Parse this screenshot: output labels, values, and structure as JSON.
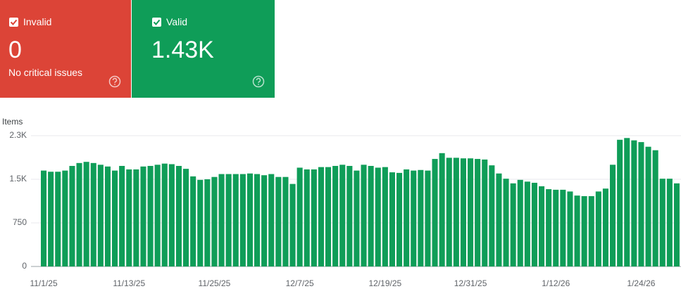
{
  "cards": [
    {
      "label": "Invalid",
      "value": "0",
      "subtitle": "No critical issues",
      "color": "#dc4437"
    },
    {
      "label": "Valid",
      "value": "1.43K",
      "color": "#0f9d58"
    }
  ],
  "chart_data": {
    "type": "bar",
    "y_label": "Items",
    "color": "#0f9d58",
    "grid": true,
    "categories": [
      "11/1/25",
      null,
      null,
      null,
      null,
      null,
      null,
      null,
      null,
      null,
      null,
      null,
      "11/13/25",
      null,
      null,
      null,
      null,
      null,
      null,
      null,
      null,
      null,
      null,
      null,
      "11/25/25",
      null,
      null,
      null,
      null,
      null,
      null,
      null,
      null,
      null,
      null,
      null,
      "12/7/25",
      null,
      null,
      null,
      null,
      null,
      null,
      null,
      null,
      null,
      null,
      null,
      "12/19/25",
      null,
      null,
      null,
      null,
      null,
      null,
      null,
      null,
      null,
      null,
      null,
      "12/31/25",
      null,
      null,
      null,
      null,
      null,
      null,
      null,
      null,
      null,
      null,
      null,
      "1/12/26",
      null,
      null,
      null,
      null,
      null,
      null,
      null,
      null,
      null,
      null,
      null,
      "1/24/26",
      null,
      null,
      null,
      null,
      null
    ],
    "values": [
      1650,
      1630,
      1630,
      1650,
      1730,
      1780,
      1800,
      1780,
      1750,
      1720,
      1650,
      1730,
      1670,
      1670,
      1720,
      1730,
      1750,
      1770,
      1760,
      1730,
      1680,
      1550,
      1490,
      1500,
      1540,
      1590,
      1590,
      1590,
      1590,
      1600,
      1590,
      1570,
      1590,
      1540,
      1540,
      1420,
      1700,
      1670,
      1670,
      1710,
      1710,
      1730,
      1750,
      1730,
      1650,
      1750,
      1730,
      1700,
      1710,
      1620,
      1610,
      1670,
      1650,
      1660,
      1650,
      1850,
      1950,
      1870,
      1870,
      1860,
      1860,
      1850,
      1840,
      1740,
      1600,
      1510,
      1430,
      1490,
      1460,
      1440,
      1380,
      1330,
      1320,
      1320,
      1290,
      1220,
      1210,
      1210,
      1290,
      1340,
      1750,
      2180,
      2210,
      2170,
      2140,
      2060,
      2000,
      1510,
      1510,
      1430
    ],
    "ylim": [
      0,
      2250
    ],
    "yticks": [
      0,
      750,
      {
        "value": 1500,
        "label": "1.5K"
      },
      {
        "value": 2250,
        "label": "2.3K"
      }
    ]
  }
}
